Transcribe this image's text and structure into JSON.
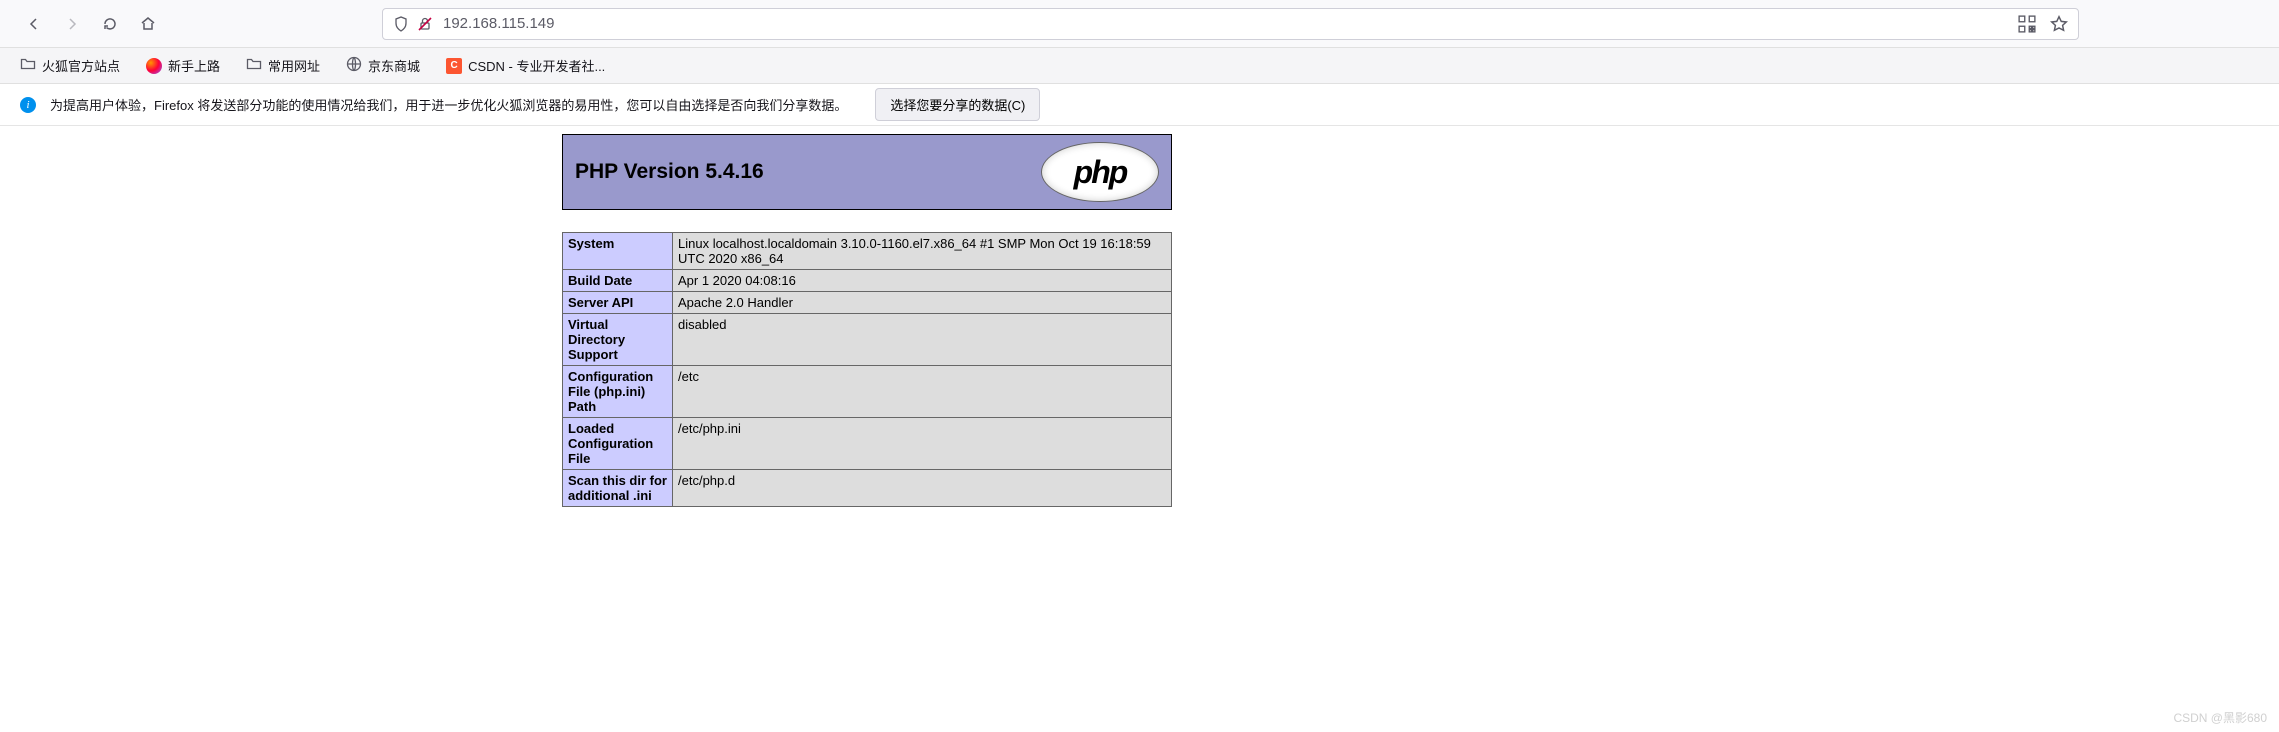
{
  "browser": {
    "url": "192.168.115.149"
  },
  "bookmarks": [
    {
      "label": "火狐官方站点",
      "icon": "folder"
    },
    {
      "label": "新手上路",
      "icon": "firefox"
    },
    {
      "label": "常用网址",
      "icon": "folder"
    },
    {
      "label": "京东商城",
      "icon": "globe"
    },
    {
      "label": "CSDN - 专业开发者社...",
      "icon": "csdn",
      "csdn_text": "C"
    }
  ],
  "infobar": {
    "text": "为提高用户体验，Firefox 将发送部分功能的使用情况给我们，用于进一步优化火狐浏览器的易用性，您可以自由选择是否向我们分享数据。",
    "button": "选择您要分享的数据(C)"
  },
  "php": {
    "header_title": "PHP Version 5.4.16",
    "logo_text": "php",
    "header_bg": "#9999cc",
    "key_bg": "#ccccff",
    "val_bg": "#dddddd",
    "border_color": "#666666",
    "rows": [
      {
        "key": "System",
        "val": "Linux localhost.localdomain 3.10.0-1160.el7.x86_64 #1 SMP Mon Oct 19 16:18:59 UTC 2020 x86_64"
      },
      {
        "key": "Build Date",
        "val": "Apr 1 2020 04:08:16"
      },
      {
        "key": "Server API",
        "val": "Apache 2.0 Handler"
      },
      {
        "key": "Virtual Directory Support",
        "val": "disabled"
      },
      {
        "key": "Configuration File (php.ini) Path",
        "val": "/etc"
      },
      {
        "key": "Loaded Configuration File",
        "val": "/etc/php.ini"
      },
      {
        "key": "Scan this dir for additional .ini",
        "val": "/etc/php.d"
      }
    ]
  },
  "watermark": "CSDN @黑影680"
}
